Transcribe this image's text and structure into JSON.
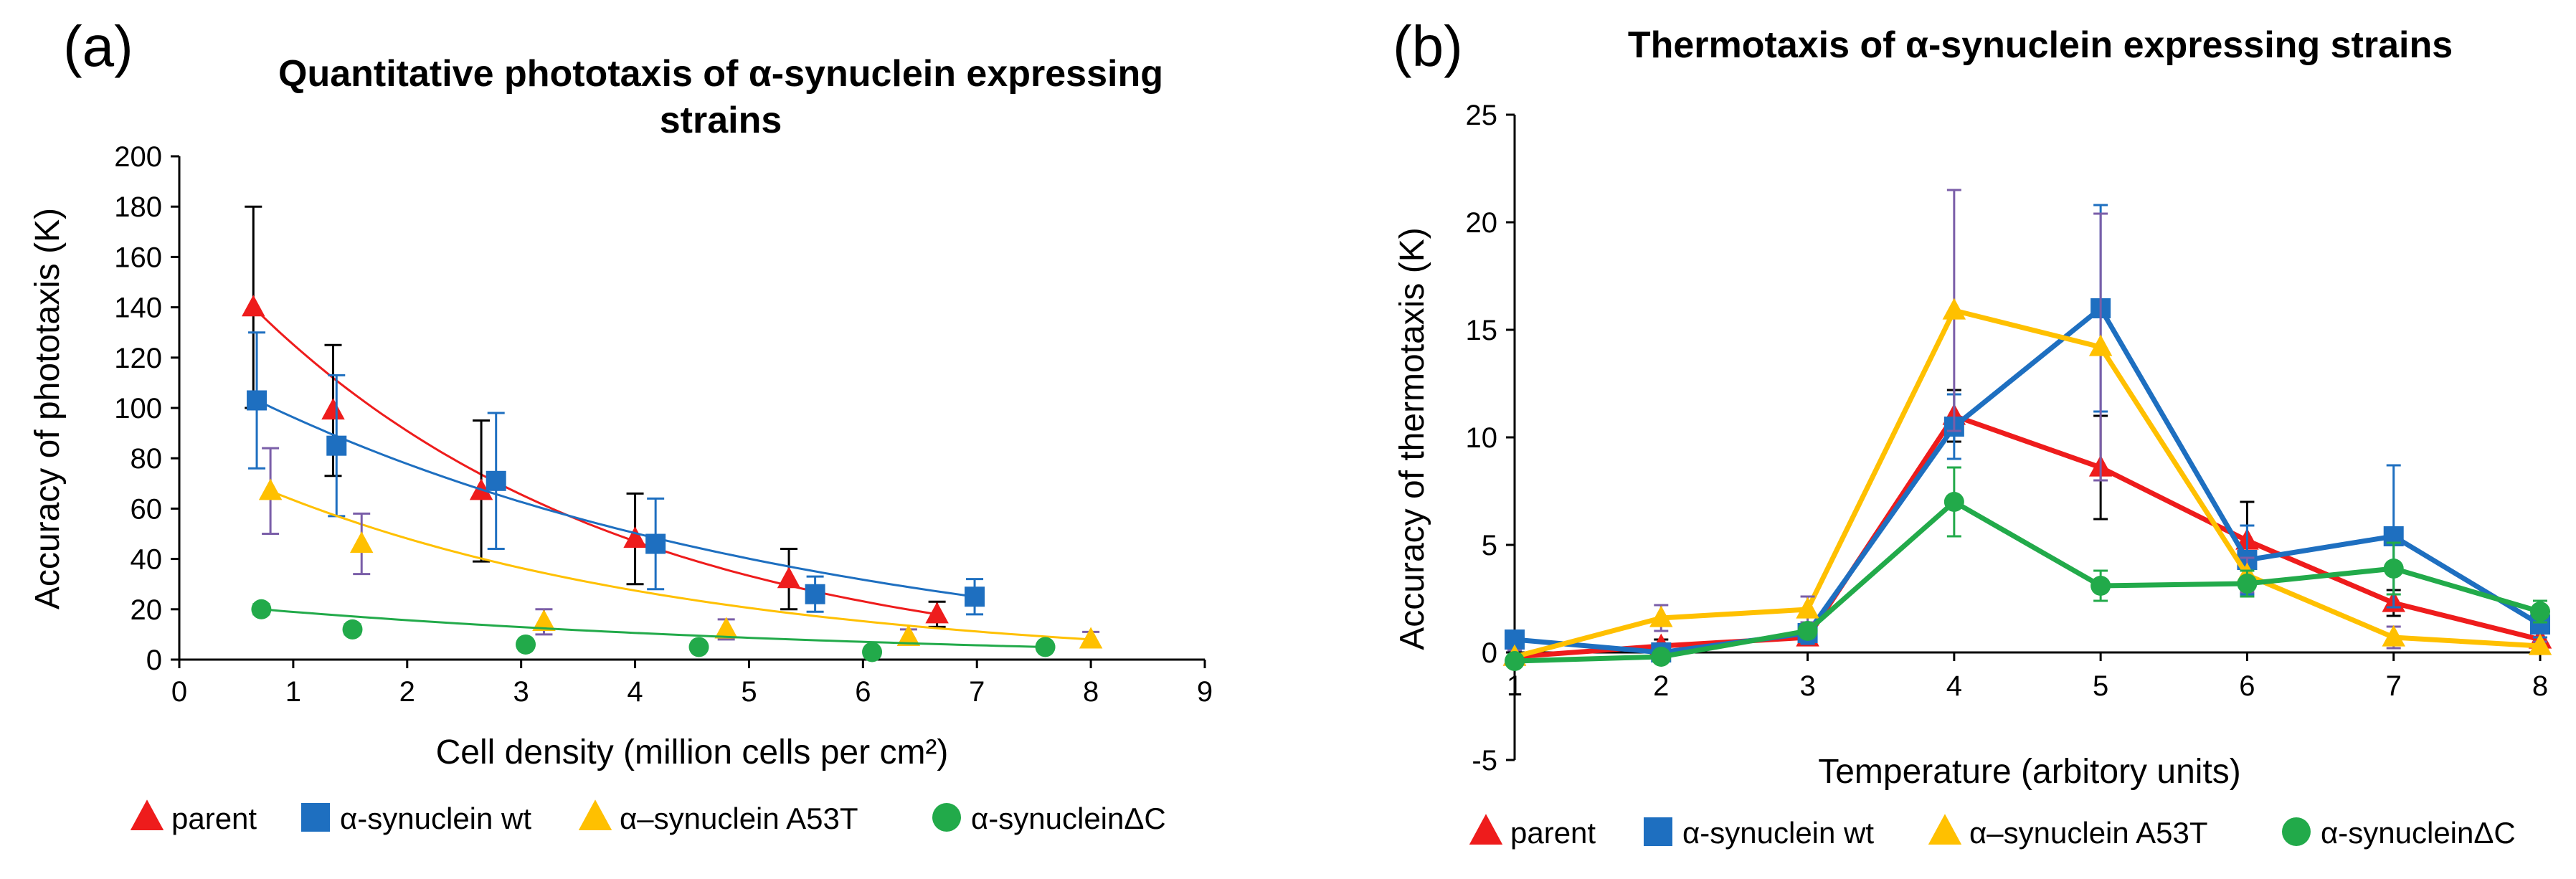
{
  "figure": {
    "panels": [
      "(a)",
      "(b)"
    ]
  },
  "chart_data": [
    {
      "type": "scatter",
      "panel": "(a)",
      "title": "Quantitative phototaxis of α-synuclein expressing strains",
      "title_lines": [
        "Quantitative phototaxis of α-synuclein expressing",
        "strains"
      ],
      "xlabel": "Cell density (million cells per cm²)",
      "ylabel": "Accuracy of phototaxis (K)",
      "xlim": [
        0,
        9
      ],
      "ylim": [
        0,
        200
      ],
      "xticks": [
        "0",
        "1",
        "2",
        "3",
        "4",
        "5",
        "6",
        "7",
        "8",
        "9"
      ],
      "yticks": [
        "0",
        "20",
        "40",
        "60",
        "80",
        "100",
        "120",
        "140",
        "160",
        "180",
        "200"
      ],
      "trendlines": "fitted curves per series",
      "series": [
        {
          "name": "parent",
          "color": "#ee1c1c",
          "marker": "triangle",
          "x": [
            0.65,
            1.35,
            2.65,
            4.0,
            5.35,
            6.65
          ],
          "y": [
            140,
            99,
            67,
            48,
            32,
            18
          ],
          "err": [
            40,
            26,
            28,
            18,
            12,
            5
          ],
          "err_color": "#000000",
          "fit": {
            "a": 162,
            "b": 0.3
          }
        },
        {
          "name": "α-synuclein wt",
          "color": "#1e6fc0",
          "marker": "square",
          "x": [
            0.68,
            1.38,
            2.78,
            4.18,
            5.58,
            6.98
          ],
          "y": [
            103,
            85,
            71,
            46,
            26,
            25
          ],
          "err": [
            27,
            28,
            27,
            18,
            7,
            7
          ],
          "err_color": "#1e6fc0",
          "fit": {
            "a": 115,
            "b": 0.24
          }
        },
        {
          "name": "α–synuclein A53T",
          "color": "#ffc000",
          "marker": "triangle",
          "x": [
            0.8,
            1.6,
            3.2,
            4.8,
            6.4,
            8.0
          ],
          "y": [
            67,
            46,
            15,
            12,
            9,
            8
          ],
          "err": [
            17,
            12,
            5,
            4,
            3,
            3
          ],
          "err_color": "#7a5ea8",
          "fit": {
            "a": 55,
            "b": 0.78
          }
        },
        {
          "name": "α-synucleinΔC",
          "color": "#22aa4a",
          "marker": "circle",
          "x": [
            0.72,
            1.52,
            3.04,
            4.56,
            6.08,
            7.6
          ],
          "y": [
            20,
            12,
            6,
            5,
            3,
            5
          ],
          "err": [
            2,
            2,
            1,
            1,
            1,
            1
          ],
          "err_color": "#22aa4a",
          "fit": {
            "a": 19,
            "b": 0.28
          }
        }
      ],
      "legend": [
        "parent",
        "α-synuclein wt",
        "α–synuclein A53T",
        "α-synucleinΔC"
      ],
      "legend_position": "bottom"
    },
    {
      "type": "line",
      "panel": "(b)",
      "title": "Thermotaxis of α-synuclein expressing strains",
      "xlabel": "Temperature (arbitory units)",
      "ylabel": "Accuracy of thermotaxis (K)",
      "xlim": [
        1,
        8
      ],
      "ylim": [
        -5,
        25
      ],
      "x": [
        1,
        2,
        3,
        4,
        5,
        6,
        7,
        8
      ],
      "xticks": [
        "1",
        "2",
        "3",
        "4",
        "5",
        "6",
        "7",
        "8"
      ],
      "yticks": [
        "-5",
        "0",
        "5",
        "10",
        "15",
        "20",
        "25"
      ],
      "series": [
        {
          "name": "parent",
          "color": "#ee1c1c",
          "marker": "triangle",
          "y": [
            -0.2,
            0.3,
            0.7,
            11.0,
            8.6,
            5.2,
            2.3,
            0.6
          ],
          "err": [
            0.2,
            0.3,
            0.3,
            1.2,
            2.4,
            1.8,
            0.6,
            0.3
          ],
          "err_color": "#000000"
        },
        {
          "name": "α-synuclein wt",
          "color": "#1e6fc0",
          "marker": "square",
          "y": [
            0.6,
            0.0,
            0.9,
            10.5,
            16.0,
            4.3,
            5.4,
            1.3
          ],
          "err": [
            0.4,
            0.3,
            0.5,
            1.5,
            4.8,
            1.6,
            3.3,
            0.6
          ],
          "err_color": "#1e6fc0"
        },
        {
          "name": "α–synuclein A53T",
          "color": "#ffc000",
          "marker": "triangle",
          "y": [
            -0.2,
            1.6,
            2.0,
            15.9,
            14.2,
            3.6,
            0.7,
            0.3
          ],
          "err": [
            0.3,
            0.6,
            0.6,
            5.6,
            6.2,
            0.8,
            0.5,
            0.2
          ],
          "err_color": "#7a5ea8"
        },
        {
          "name": "α-synucleinΔC",
          "color": "#22aa4a",
          "marker": "circle",
          "y": [
            -0.4,
            -0.2,
            1.0,
            7.0,
            3.1,
            3.2,
            3.9,
            1.9
          ],
          "err": [
            0.2,
            0.2,
            0.3,
            1.6,
            0.7,
            0.6,
            1.2,
            0.5
          ],
          "err_color": "#22aa4a"
        }
      ],
      "legend": [
        "parent",
        "α-synuclein wt",
        "α–synuclein A53T",
        "α-synucleinΔC"
      ],
      "legend_position": "bottom"
    }
  ]
}
